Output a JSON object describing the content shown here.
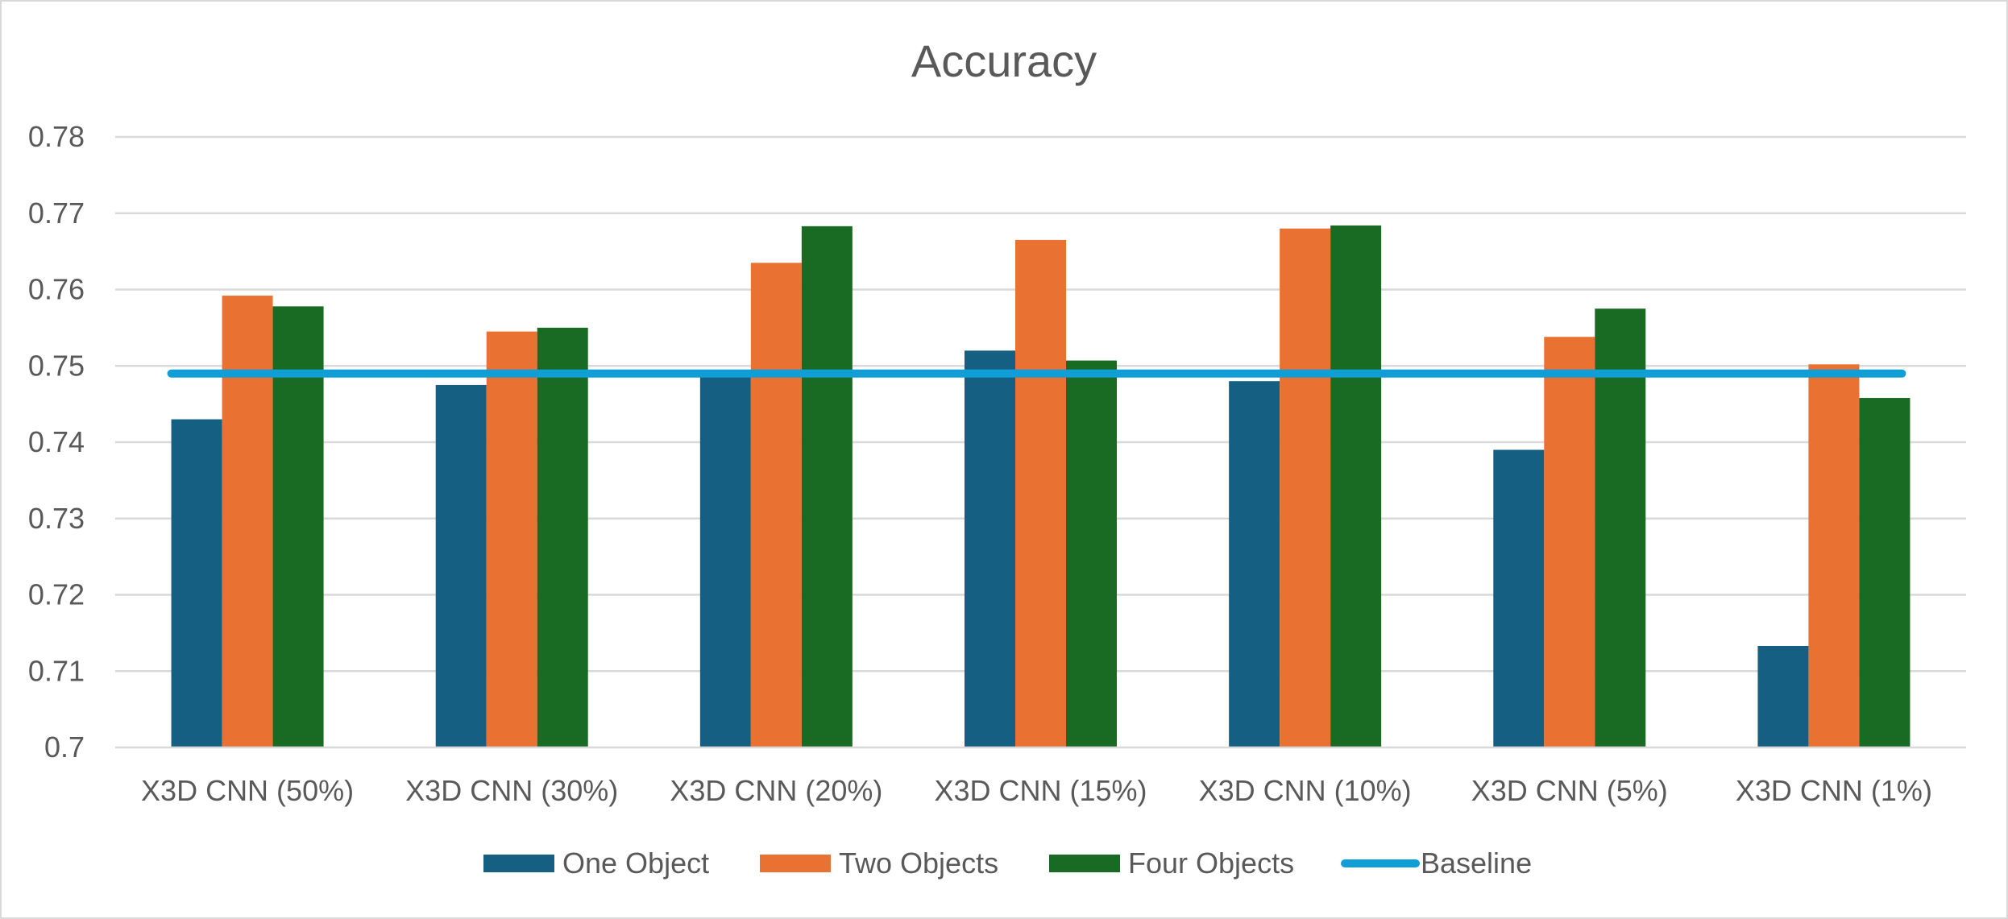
{
  "chart_data": {
    "type": "bar",
    "title": "Accuracy",
    "xlabel": "",
    "ylabel": "",
    "ylim": [
      0.7,
      0.78
    ],
    "yticks": [
      0.7,
      0.71,
      0.72,
      0.73,
      0.74,
      0.75,
      0.76,
      0.77,
      0.78
    ],
    "ytick_labels": [
      "0.7",
      "0.71",
      "0.72",
      "0.73",
      "0.74",
      "0.75",
      "0.76",
      "0.77",
      "0.78"
    ],
    "grid": true,
    "legend_position": "bottom",
    "categories": [
      "X3D CNN (50%)",
      "X3D CNN (30%)",
      "X3D CNN (20%)",
      "X3D CNN (15%)",
      "X3D CNN (10%)",
      "X3D CNN (5%)",
      "X3D CNN (1%)"
    ],
    "series": [
      {
        "name": "One Object",
        "type": "bar",
        "color": "#156082",
        "values": [
          0.743,
          0.7475,
          0.749,
          0.752,
          0.748,
          0.739,
          0.7133
        ]
      },
      {
        "name": "Two Objects",
        "type": "bar",
        "color": "#E97132",
        "values": [
          0.7592,
          0.7545,
          0.7635,
          0.7665,
          0.768,
          0.7538,
          0.7502
        ]
      },
      {
        "name": "Four Objects",
        "type": "bar",
        "color": "#196B24",
        "values": [
          0.7578,
          0.755,
          0.7683,
          0.7507,
          0.7684,
          0.7575,
          0.7458
        ]
      },
      {
        "name": "Baseline",
        "type": "line",
        "color": "#0F9ED5",
        "values": [
          0.749,
          0.749,
          0.749,
          0.749,
          0.749,
          0.749,
          0.749
        ]
      }
    ]
  }
}
